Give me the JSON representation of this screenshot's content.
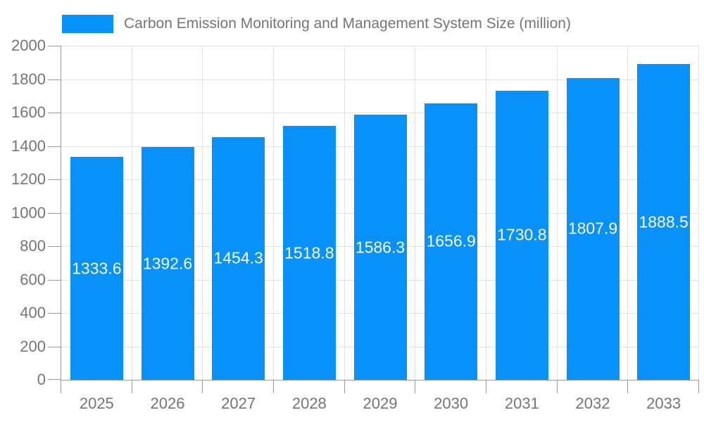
{
  "chart_data": {
    "type": "bar",
    "title": "Carbon Emission Monitoring and Management System Size (million)",
    "categories": [
      "2025",
      "2026",
      "2027",
      "2028",
      "2029",
      "2030",
      "2031",
      "2032",
      "2033"
    ],
    "values": [
      1333.6,
      1392.6,
      1454.3,
      1518.8,
      1586.3,
      1656.9,
      1730.8,
      1807.9,
      1888.5
    ],
    "xlabel": "",
    "ylabel": "",
    "ylim": [
      0,
      2000
    ],
    "yticks": [
      0,
      200,
      400,
      600,
      800,
      1000,
      1200,
      1400,
      1600,
      1800,
      2000
    ],
    "grid": true,
    "legend_position": "top-left",
    "value_labels": "inside-center"
  },
  "colors": {
    "bar": "#0791f9",
    "grid": "#e2e2e2",
    "axis": "#999999",
    "tick_label": "#757575",
    "title": "#757575",
    "value_label": "#ffffff",
    "background": "#ffffff"
  }
}
